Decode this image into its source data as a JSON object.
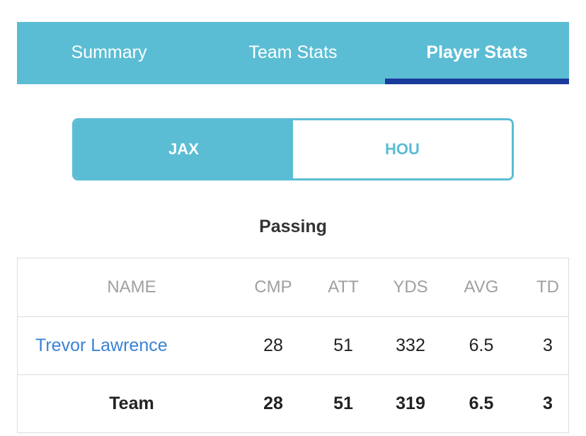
{
  "tabs": [
    {
      "label": "Summary",
      "active": false
    },
    {
      "label": "Team Stats",
      "active": false
    },
    {
      "label": "Player Stats",
      "active": true
    }
  ],
  "teams": [
    {
      "label": "JAX",
      "active": true
    },
    {
      "label": "HOU",
      "active": false
    }
  ],
  "section": {
    "title": "Passing"
  },
  "table": {
    "columns": [
      "NAME",
      "CMP",
      "ATT",
      "YDS",
      "AVG",
      "TD"
    ],
    "rows": [
      {
        "name": "Trevor Lawrence",
        "cmp": "28",
        "att": "51",
        "yds": "332",
        "avg": "6.5",
        "td": "3"
      }
    ],
    "total": {
      "name": "Team",
      "cmp": "28",
      "att": "51",
      "yds": "319",
      "avg": "6.5",
      "td": "3"
    }
  },
  "colors": {
    "accent": "#5bbdd4",
    "active_underline": "#1a3a9c",
    "link": "#3a82d4"
  }
}
